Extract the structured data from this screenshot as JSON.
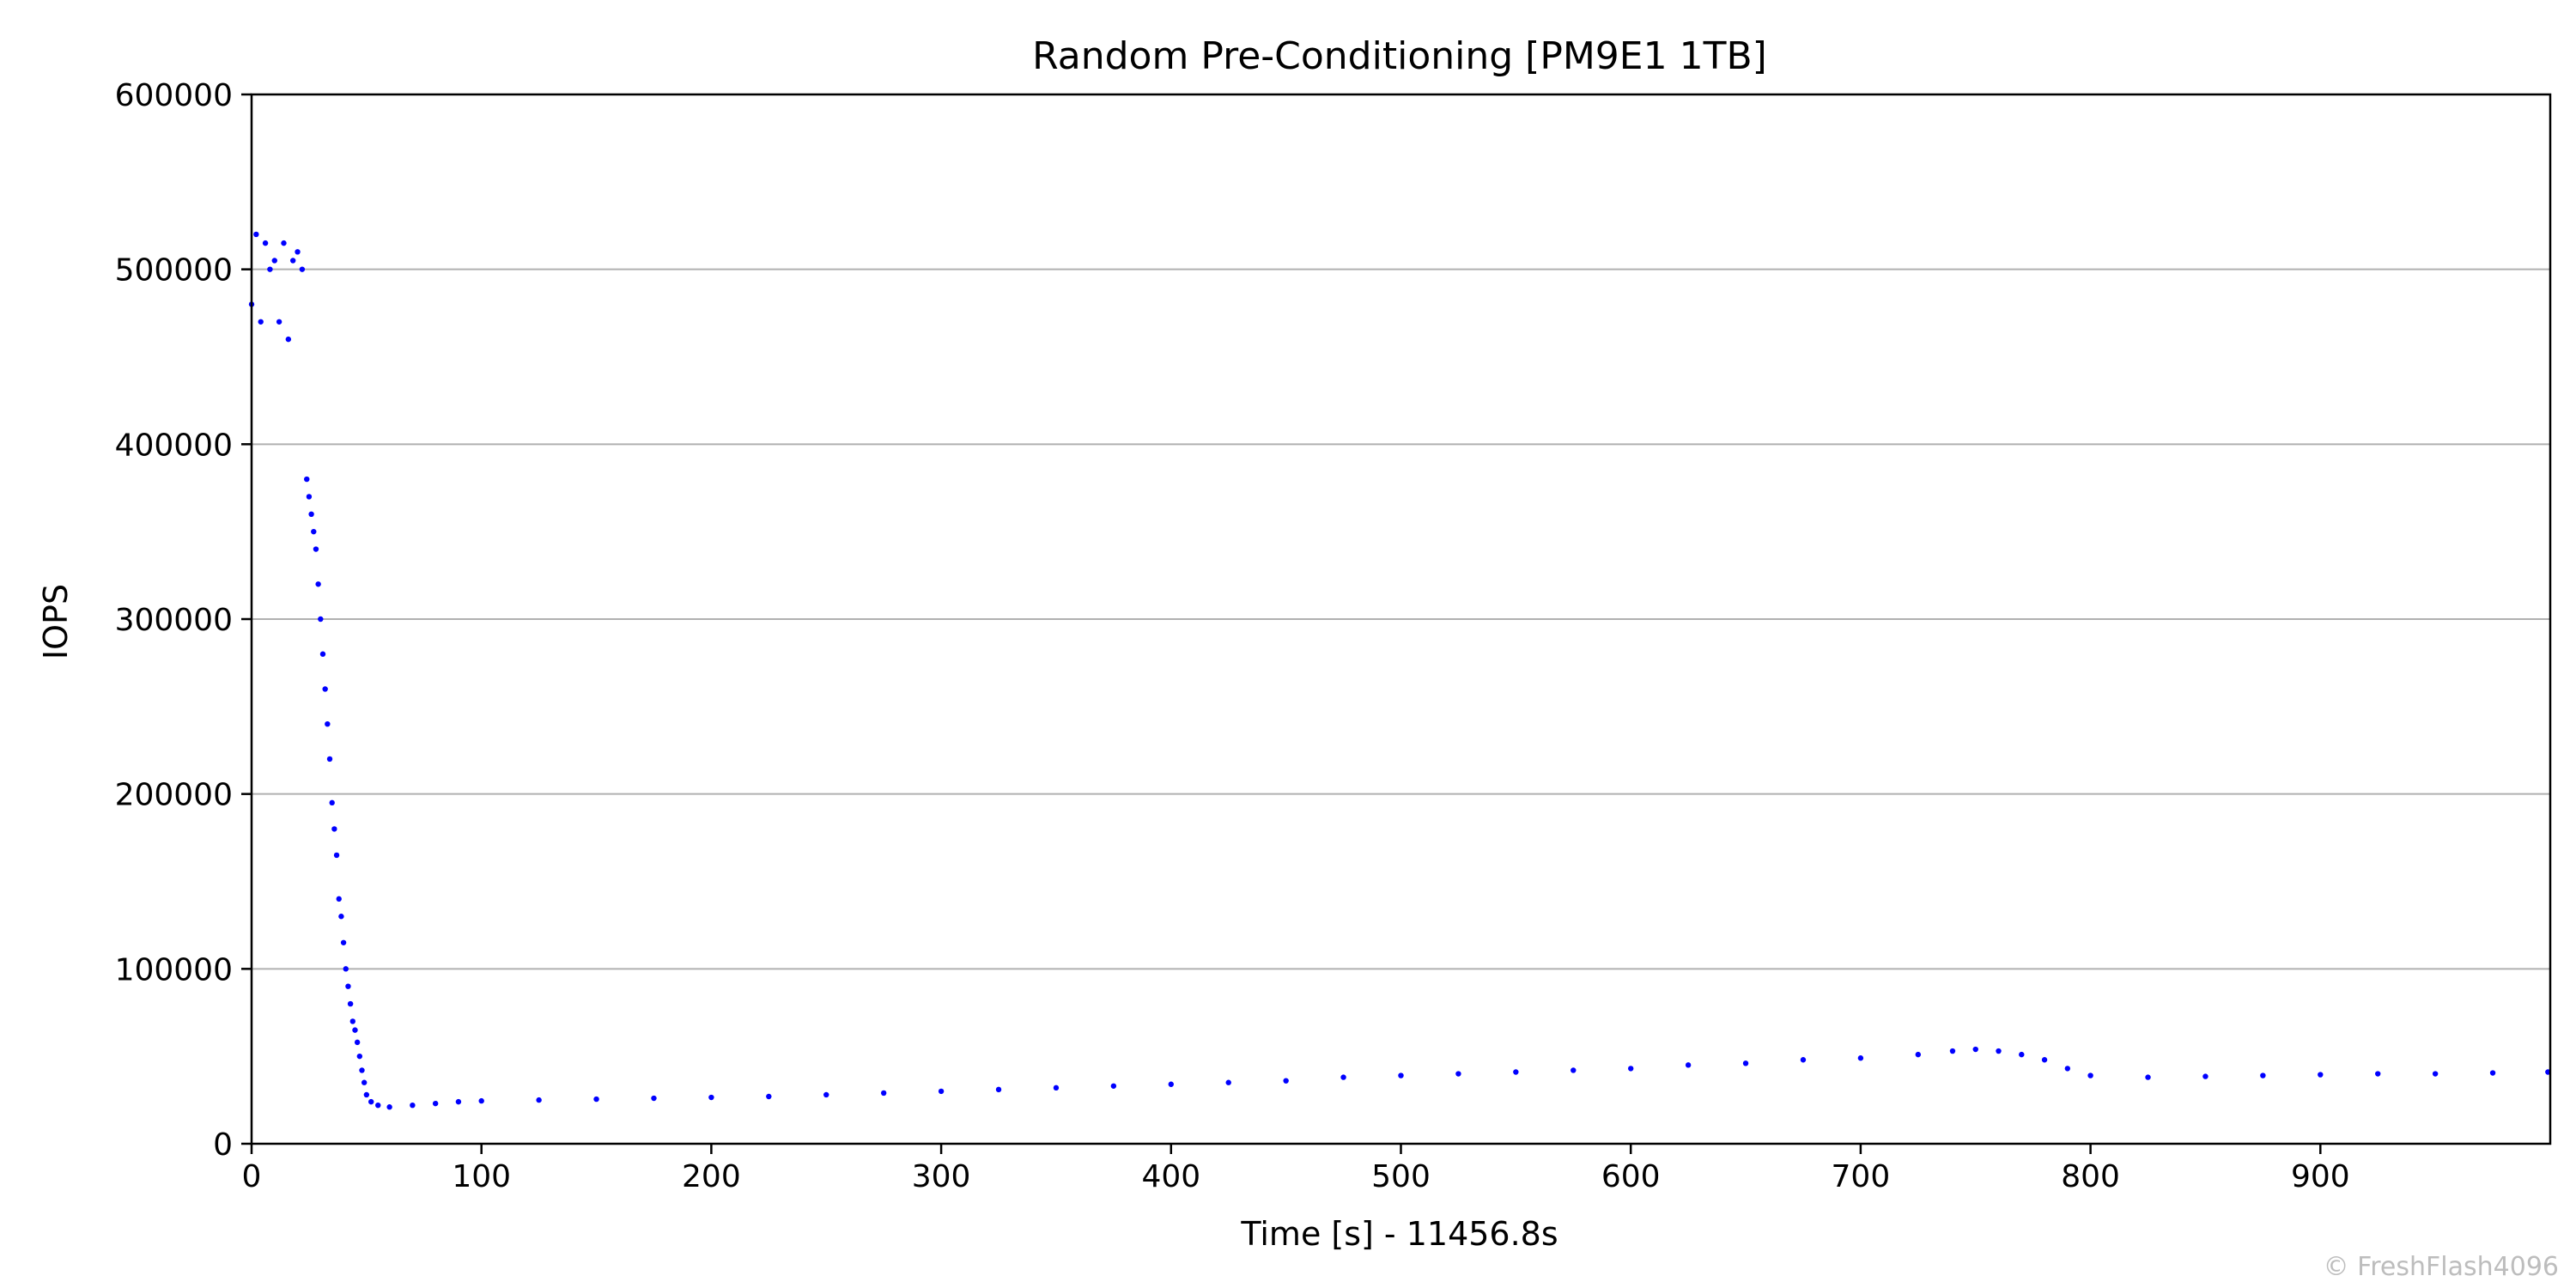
{
  "chart_data": {
    "type": "scatter",
    "title": "Random Pre-Conditioning [PM9E1 1TB]",
    "xlabel": "Time [s] - 11456.8s",
    "ylabel": "IOPS",
    "xlim": [
      0,
      1000
    ],
    "ylim": [
      0,
      600000
    ],
    "x_ticks": [
      0,
      100,
      200,
      300,
      400,
      500,
      600,
      700,
      800,
      900
    ],
    "x_tick_labels": [
      "0",
      "100",
      "200",
      "300",
      "400",
      "500",
      "600",
      "700",
      "800",
      "900"
    ],
    "y_ticks": [
      0,
      100000,
      200000,
      300000,
      400000,
      500000,
      600000
    ],
    "y_tick_labels": [
      "0",
      "100000",
      "200000",
      "300000",
      "400000",
      "500000",
      "600000"
    ],
    "grid": "horizontal",
    "marker_color": "#0000ff",
    "series": [
      {
        "x": [
          0,
          2,
          4,
          6,
          8,
          10,
          12,
          14,
          16,
          18,
          20,
          22,
          24,
          25,
          26,
          27,
          28,
          29,
          30,
          31,
          32,
          33,
          34,
          35,
          36,
          37,
          38,
          39,
          40,
          41,
          42,
          43,
          44,
          45,
          46,
          47,
          48,
          49,
          50,
          52,
          55,
          60,
          70,
          80,
          90,
          100,
          125,
          150,
          175,
          200,
          225,
          250,
          275,
          300,
          325,
          350,
          375,
          400,
          425,
          450,
          475,
          500,
          525,
          550,
          575,
          600,
          625,
          650,
          675,
          700,
          725,
          740,
          750,
          760,
          770,
          780,
          790,
          800,
          825,
          850,
          875,
          900,
          925,
          950,
          975,
          999
        ],
        "y": [
          480000,
          520000,
          470000,
          515000,
          500000,
          505000,
          470000,
          515000,
          460000,
          505000,
          510000,
          500000,
          380000,
          370000,
          360000,
          350000,
          340000,
          320000,
          300000,
          280000,
          260000,
          240000,
          220000,
          195000,
          180000,
          165000,
          140000,
          130000,
          115000,
          100000,
          90000,
          80000,
          70000,
          65000,
          58000,
          50000,
          42000,
          35000,
          28000,
          24000,
          22000,
          21000,
          22000,
          23000,
          24000,
          24500,
          25000,
          25500,
          26000,
          26500,
          27000,
          28000,
          29000,
          30000,
          31000,
          32000,
          33000,
          34000,
          35000,
          36000,
          38000,
          39000,
          40000,
          41000,
          42000,
          43000,
          45000,
          46000,
          48000,
          49000,
          51000,
          53000,
          54000,
          53000,
          51000,
          48000,
          43000,
          39000,
          38000,
          38500,
          39000,
          39500,
          40000,
          40000,
          40500,
          41000
        ]
      }
    ]
  },
  "watermark": "© FreshFlash4096"
}
